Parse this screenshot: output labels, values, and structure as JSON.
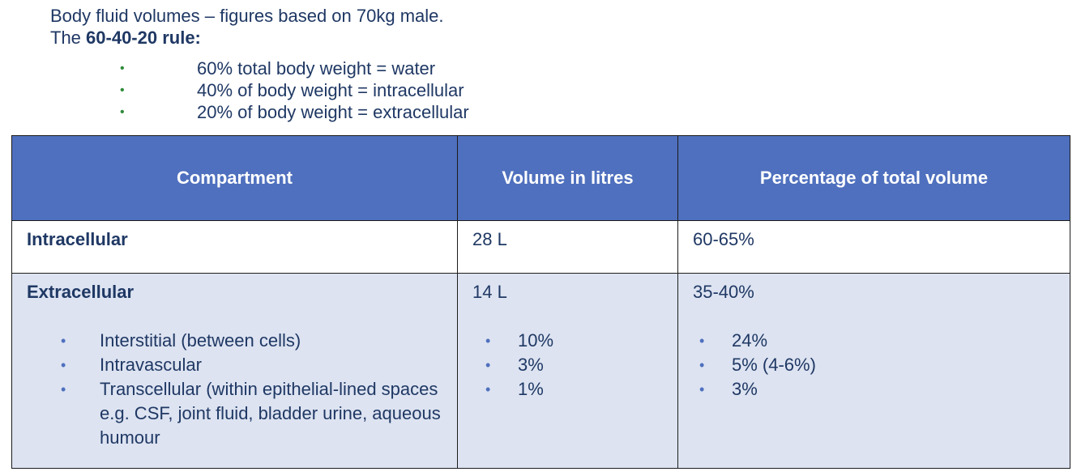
{
  "intro": {
    "line1": "Body fluid volumes – figures based on 70kg male.",
    "line2_prefix": "The ",
    "line2_bold": "60-40-20 rule:",
    "rules": [
      "60% total body weight = water",
      "40% of body weight = intracellular",
      "20% of body weight = extracellular"
    ]
  },
  "table": {
    "headers": [
      "Compartment",
      "Volume in litres",
      "Percentage of total volume"
    ],
    "rows": [
      {
        "compartment": "Intracellular",
        "volume": "28 L",
        "percentage": "60-65%"
      },
      {
        "compartment": "Extracellular",
        "volume": "14 L",
        "percentage": "35-40%",
        "sub_compartments": [
          "Interstitial (between cells)",
          "Intravascular",
          "Transcellular (within epithelial-lined spaces e.g. CSF, joint fluid, bladder urine, aqueous humour"
        ],
        "sub_volumes": [
          "10%",
          "3%",
          "1%"
        ],
        "sub_percentages": [
          "24%",
          "5% (4-6%)",
          "3%"
        ]
      }
    ]
  },
  "colors": {
    "header_bg": "#4f70be",
    "extra_row_bg": "#dde3f1",
    "text": "#1f3864",
    "bullet_green": "#2e8b3a"
  }
}
